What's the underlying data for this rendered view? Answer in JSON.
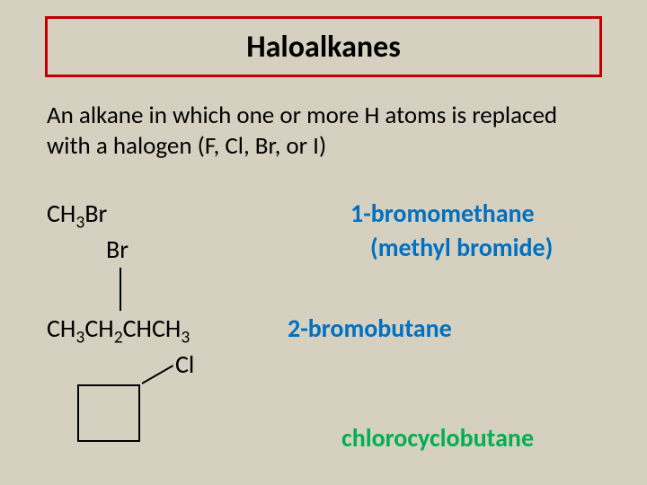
{
  "title": "Haloalkanes",
  "definition": "An alkane in which one or more H atoms is replaced with a halogen (F, Cl, Br, or I)",
  "ex1": {
    "formula_pre": "CH",
    "formula_sub1": "3",
    "formula_post": "Br",
    "name_line1": "1-bromomethane",
    "br_label": "Br",
    "name_line2": "(methyl bromide)"
  },
  "ex2": {
    "f_p1": "CH",
    "f_s1": "3",
    "f_p2": "CH",
    "f_s2": "2",
    "f_p3": "CHCH",
    "f_s3": "3",
    "name": "2-bromobutane",
    "cl_label": "Cl"
  },
  "ex3": {
    "name": "chlorocyclobutane"
  },
  "colors": {
    "title_border": "#c00000",
    "name1": "#0070c0",
    "name2": "#0070c0",
    "name3": "#00b050",
    "bg": "#d6d0c0"
  },
  "fontsize": {
    "title": 34,
    "body": 27,
    "formula": 28
  }
}
